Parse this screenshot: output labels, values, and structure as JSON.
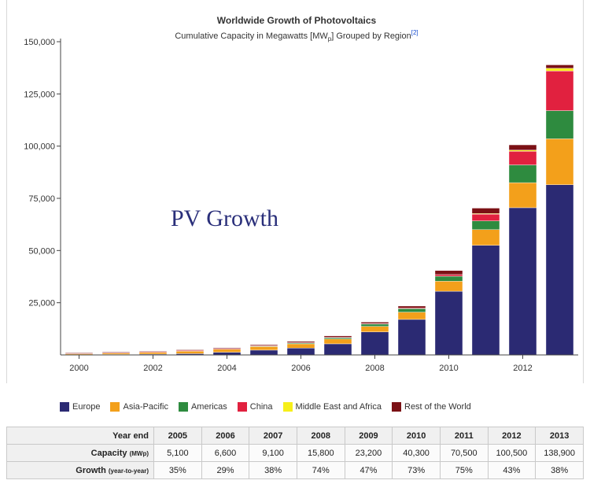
{
  "chart_data": {
    "type": "bar",
    "stacked": true,
    "title": "Worldwide Growth of Photovoltaics",
    "subtitle": {
      "prefix": "Cumulative Capacity in Megawatts [MW",
      "sub": "p",
      "suffix": "] Grouped by Region",
      "ref": "[2]"
    },
    "overlay_text": "PV Growth",
    "categories": [
      "2000",
      "2001",
      "2002",
      "2003",
      "2004",
      "2005",
      "2006",
      "2007",
      "2008",
      "2009",
      "2010",
      "2011",
      "2012",
      "2013"
    ],
    "x_tick_labels": [
      "2000",
      "2002",
      "2004",
      "2006",
      "2008",
      "2010",
      "2012"
    ],
    "y_ticks": [
      25000,
      50000,
      75000,
      100000,
      125000,
      150000
    ],
    "y_tick_labels": [
      "25,000",
      "50,000",
      "75,000",
      "100,000",
      "125,000",
      "150,000"
    ],
    "ylim": [
      0,
      150000
    ],
    "series": [
      {
        "name": "Europe",
        "color": "#2b2a73",
        "values": [
          150,
          250,
          400,
          600,
          1300,
          2300,
          3300,
          5300,
          11000,
          17000,
          30500,
          52500,
          70500,
          81500
        ]
      },
      {
        "name": "Asia-Pacific",
        "color": "#f3a01b",
        "values": [
          500,
          700,
          900,
          1200,
          1400,
          1700,
          2000,
          2300,
          2700,
          3500,
          4800,
          7500,
          12000,
          22000
        ]
      },
      {
        "name": "Americas",
        "color": "#2e8b3f",
        "values": [
          200,
          230,
          250,
          300,
          350,
          450,
          600,
          800,
          1200,
          1700,
          2400,
          4200,
          8500,
          13500
        ]
      },
      {
        "name": "China",
        "color": "#e1213f",
        "values": [
          20,
          30,
          40,
          50,
          60,
          70,
          80,
          100,
          150,
          300,
          800,
          3300,
          6500,
          19000
        ]
      },
      {
        "name": "Middle East and Africa",
        "color": "#f6ef1a",
        "values": [
          0,
          0,
          0,
          0,
          0,
          0,
          0,
          0,
          0,
          0,
          0,
          200,
          600,
          1300
        ]
      },
      {
        "name": "Rest of the World",
        "color": "#7b1115",
        "values": [
          180,
          200,
          250,
          300,
          330,
          400,
          500,
          600,
          700,
          900,
          1900,
          2600,
          2500,
          1600
        ]
      }
    ]
  },
  "table": {
    "header_label": "Year end",
    "years": [
      "2005",
      "2006",
      "2007",
      "2008",
      "2009",
      "2010",
      "2011",
      "2012",
      "2013"
    ],
    "capacity_label": "Capacity",
    "capacity_unit": "(MWp)",
    "capacity": [
      "5,100",
      "6,600",
      "9,100",
      "15,800",
      "23,200",
      "40,300",
      "70,500",
      "100,500",
      "138,900"
    ],
    "growth_label": "Growth",
    "growth_unit": "(year-to-year)",
    "growth": [
      "35%",
      "29%",
      "38%",
      "74%",
      "47%",
      "73%",
      "75%",
      "43%",
      "38%"
    ]
  }
}
